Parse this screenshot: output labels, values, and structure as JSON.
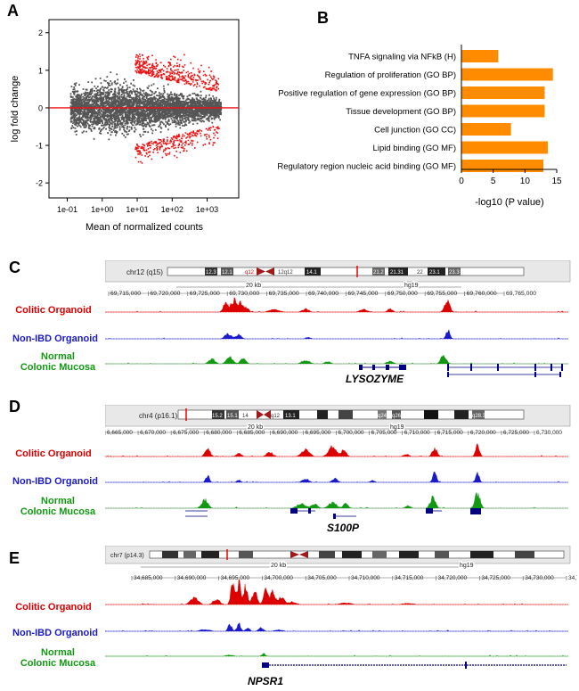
{
  "panels": {
    "a": {
      "letter": "A",
      "chart_data": {
        "type": "scatter",
        "title": "",
        "xlabel": "Mean of normalized counts",
        "ylabel": "log fold change",
        "x_scale": "log",
        "xlim": [
          0.03,
          8000
        ],
        "ylim": [
          -2.4,
          2.35
        ],
        "x_ticks": [
          "1e-01",
          "1e+00",
          "1e+01",
          "1e+02",
          "1e+03"
        ],
        "x_tick_values": [
          0.1,
          1,
          10,
          100,
          1000
        ],
        "y_ticks": [
          "-2",
          "-1",
          "0",
          "1",
          "2"
        ],
        "y_tick_values": [
          -2,
          -1,
          0,
          1,
          2
        ],
        "reference_line_y": 0,
        "colors": {
          "non_significant": "#555555",
          "significant": "#ee1111",
          "reference_line": "#ee1111"
        }
      }
    },
    "b": {
      "letter": "B",
      "chart_data": {
        "type": "bar",
        "orientation": "horizontal",
        "title": "",
        "categories": [
          "TNFA signaling via NFkB (H)",
          "Regulation of proliferation (GO BP)",
          "Positive regulation of gene expression (GO BP)",
          "Tissue development (GO BP)",
          "Cell junction (GO CC)",
          "Lipid binding (GO MF)",
          "Regulatory region nucleic acid binding (GO MF)"
        ],
        "values": [
          5.8,
          14.4,
          13.1,
          13.1,
          7.8,
          13.6,
          12.9
        ],
        "xlabel": "-log10 (P value)",
        "xlim": [
          0,
          15
        ],
        "x_ticks": [
          "0",
          "5",
          "10",
          "15"
        ],
        "x_tick_values": [
          0,
          5,
          10,
          15
        ],
        "bar_color": "#ff8c00"
      }
    },
    "c": {
      "letter": "C",
      "chromosome": "chr12 (q15)",
      "bands": [
        "12.3",
        "12.1",
        "q12",
        "12q12",
        "14.1",
        "21.2",
        "21.31",
        "22",
        "23.1",
        "23.3"
      ],
      "scale_text": "20 kb",
      "genome": "hg19",
      "coords": [
        "69,715,000",
        "69,720,000",
        "69,725,000",
        "69,730,000",
        "69,735,000",
        "69,740,000",
        "69,745,000",
        "69,750,000",
        "69,755,000",
        "69,760,000",
        "69,765,000"
      ],
      "gene": "LYSOZYME"
    },
    "d": {
      "letter": "D",
      "chromosome": "chr4 (p16.1)",
      "bands": [
        "15.2",
        "15.1",
        "14",
        "q12",
        "13.1",
        "q24",
        "q26",
        "q28.3"
      ],
      "scale_text": "20 kb",
      "genome": "hg19",
      "coords": [
        "6,665,000",
        "6,670,000",
        "6,675,000",
        "6,680,000",
        "6,685,000",
        "6,690,000",
        "6,695,000",
        "6,700,000",
        "6,705,000",
        "6,710,000",
        "6,715,000",
        "6,720,000",
        "6,725,000",
        "6,730,000"
      ],
      "gene": "S100P"
    },
    "e": {
      "letter": "E",
      "chromosome": "chr7 (p14.3)",
      "scale_text": "20 kb",
      "genome": "hg19",
      "coords": [
        "34,685,000",
        "34,690,000",
        "34,695,000",
        "34,700,000",
        "34,705,000",
        "34,710,000",
        "34,715,000",
        "34,720,000",
        "34,725,000",
        "34,730,000",
        "34,735,000"
      ],
      "gene": "NPSR1"
    }
  },
  "tracks": {
    "colitic": "Colitic Organoid",
    "non_ibd": "Non-IBD Organoid",
    "normal_line1": "Normal",
    "normal_line2": "Colonic Mucosa"
  },
  "colors": {
    "colitic": "#dd0000",
    "non_ibd": "#1a1acc",
    "normal": "#119911",
    "gene_model": "#000080"
  }
}
